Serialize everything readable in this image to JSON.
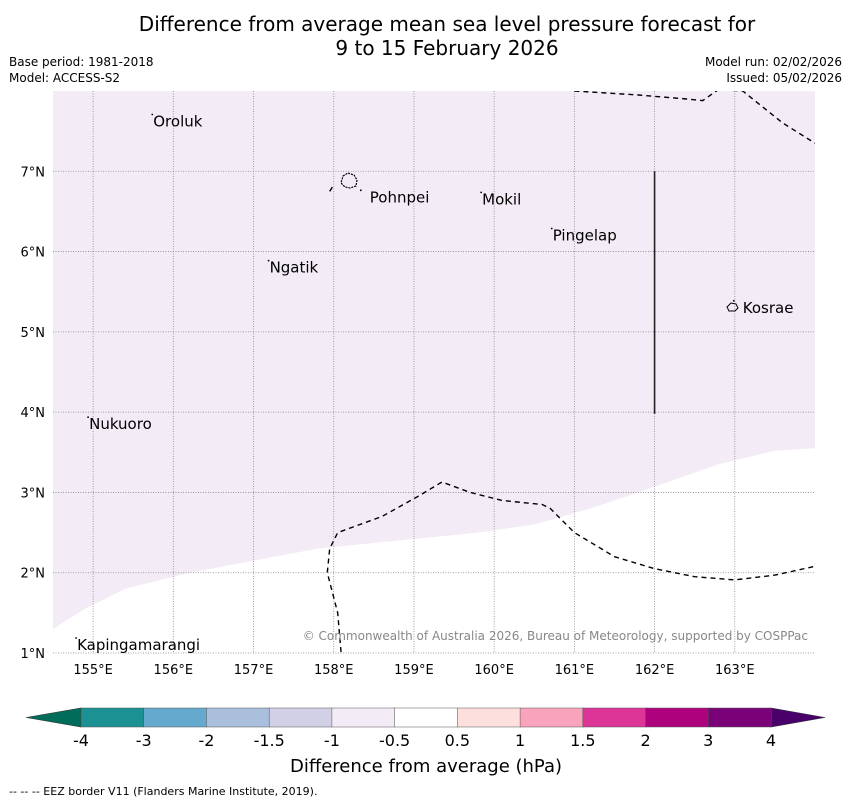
{
  "title": {
    "line1": "Difference from average mean sea level pressure forecast for",
    "line2": "9 to 15 February 2026"
  },
  "meta": {
    "base_period": "Base period: 1981-2018",
    "model": "Model: ACCESS-S2",
    "model_run": "Model run: 02/02/2026",
    "issued": "Issued: 05/02/2026"
  },
  "map": {
    "lon_range": [
      154.5,
      164.0
    ],
    "lat_range": [
      1.0,
      8.0
    ],
    "lon_ticks": [
      155,
      156,
      157,
      158,
      159,
      160,
      161,
      162,
      163
    ],
    "lat_ticks": [
      1,
      2,
      3,
      4,
      5,
      6,
      7
    ],
    "lon_tick_labels": [
      "155°E",
      "156°E",
      "157°E",
      "158°E",
      "159°E",
      "160°E",
      "161°E",
      "162°E",
      "163°E"
    ],
    "lat_tick_labels": [
      "1°N",
      "2°N",
      "3°N",
      "4°N",
      "5°N",
      "6°N",
      "7°N"
    ],
    "places": [
      {
        "name": "Oroluk",
        "lon": 155.75,
        "lat": 7.62
      },
      {
        "name": "Pohnpei",
        "lon": 158.35,
        "lat": 6.85
      },
      {
        "name": "Mokil",
        "lon": 159.85,
        "lat": 6.65
      },
      {
        "name": "Pingelap",
        "lon": 160.73,
        "lat": 6.2
      },
      {
        "name": "Ngatik",
        "lon": 157.2,
        "lat": 5.8
      },
      {
        "name": "Kosrae",
        "lon": 163.0,
        "lat": 5.3
      },
      {
        "name": "Nukuoro",
        "lon": 154.95,
        "lat": 3.85
      },
      {
        "name": "Kapingamarangi",
        "lon": 154.8,
        "lat": 1.1
      }
    ],
    "shaded_category": "-1 to -0.5",
    "shaded_color": "#f3ecf6",
    "copyright": "© Commonwealth of Australia 2026, Bureau of Meteorology, supported by COSPPac"
  },
  "legend": {
    "tick_labels": [
      "-4",
      "-3",
      "-2",
      "-1.5",
      "-1",
      "-0.5",
      "0.5",
      "1",
      "1.5",
      "2",
      "3",
      "4"
    ],
    "colors": [
      "#1c9193",
      "#66a9cf",
      "#a9bfdc",
      "#d1d0e6",
      "#f3ecf6",
      "#ffffff",
      "#fde0dd",
      "#f9a4bc",
      "#dd3497",
      "#ae017e",
      "#7a0177"
    ],
    "extend_low_color": "#016c59",
    "extend_high_color": "#49006a",
    "label": "Difference from average (hPa)"
  },
  "footer": "--  --  -- EEZ border V11 (Flanders Marine Institute, 2019)."
}
